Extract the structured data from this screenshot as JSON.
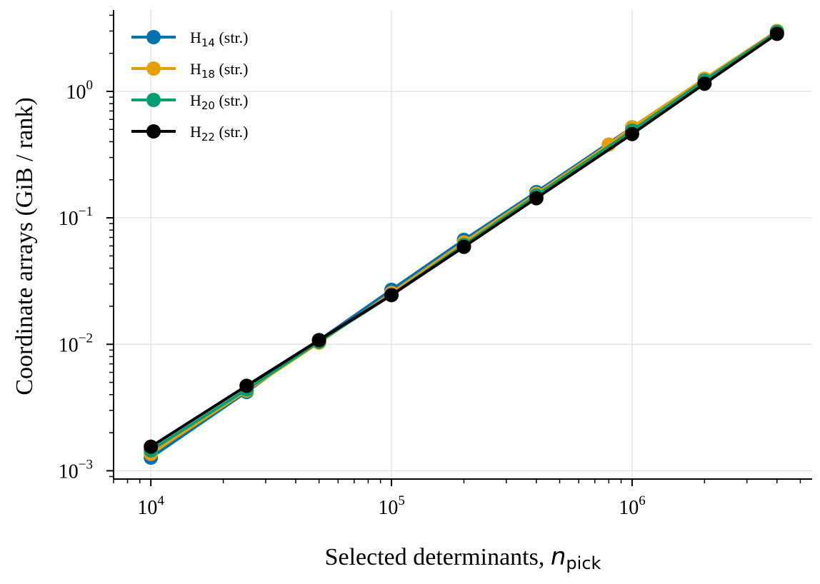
{
  "chart_data": {
    "type": "line",
    "xlabel": "Selected determinants, ",
    "xlabel_math": "n",
    "xlabel_math_sub": "pick",
    "ylabel": "Coordinate arrays (GiB / rank)",
    "x_scale": "log",
    "y_scale": "log",
    "xlim": [
      7000,
      5600000
    ],
    "ylim": [
      0.00086,
      4.4
    ],
    "x_ticks": [
      {
        "base": "10",
        "exp": "4",
        "value": 10000
      },
      {
        "base": "10",
        "exp": "5",
        "value": 100000
      },
      {
        "base": "10",
        "exp": "6",
        "value": 1000000
      }
    ],
    "y_ticks": [
      {
        "base": "10",
        "exp": "−3",
        "value": 0.001
      },
      {
        "base": "10",
        "exp": "−2",
        "value": 0.01
      },
      {
        "base": "10",
        "exp": "−1",
        "value": 0.1
      },
      {
        "base": "10",
        "exp": "0",
        "value": 1
      }
    ],
    "grid": true,
    "legend_position": "top-left",
    "series": [
      {
        "name": "H",
        "name_sub": "14",
        "name_suffix": " (str.)",
        "color": "#0072b2",
        "points": [
          [
            10000,
            0.00127
          ],
          [
            25000,
            0.0042
          ],
          [
            50000,
            0.0108
          ],
          [
            100000,
            0.027
          ],
          [
            200000,
            0.067
          ],
          [
            400000,
            0.16
          ],
          [
            1000000,
            0.52
          ],
          [
            2000000,
            1.25
          ],
          [
            4000000,
            3.0
          ]
        ]
      },
      {
        "name": "H",
        "name_sub": "18",
        "name_suffix": " (str.)",
        "color": "#e69f00",
        "points": [
          [
            10000,
            0.00136
          ],
          [
            25000,
            0.0043
          ],
          [
            50000,
            0.0103
          ],
          [
            100000,
            0.0255
          ],
          [
            200000,
            0.064
          ],
          [
            400000,
            0.155
          ],
          [
            800000,
            0.38
          ],
          [
            1000000,
            0.52
          ],
          [
            2000000,
            1.26
          ],
          [
            4000000,
            3.0
          ]
        ]
      },
      {
        "name": "H",
        "name_sub": "20",
        "name_suffix": " (str.)",
        "color": "#009e73",
        "points": [
          [
            10000,
            0.00145
          ],
          [
            25000,
            0.0044
          ],
          [
            50000,
            0.0105
          ],
          [
            100000,
            0.0245
          ],
          [
            200000,
            0.061
          ],
          [
            400000,
            0.15
          ],
          [
            1000000,
            0.49
          ],
          [
            2000000,
            1.22
          ],
          [
            4000000,
            2.95
          ]
        ]
      },
      {
        "name": "H",
        "name_sub": "22",
        "name_suffix": " (str.)",
        "color": "#000000",
        "points": [
          [
            10000,
            0.00155
          ],
          [
            25000,
            0.0047
          ],
          [
            50000,
            0.0108
          ],
          [
            100000,
            0.0245
          ],
          [
            200000,
            0.059
          ],
          [
            400000,
            0.143
          ],
          [
            1000000,
            0.46
          ],
          [
            2000000,
            1.15
          ],
          [
            4000000,
            2.85
          ]
        ]
      }
    ]
  }
}
